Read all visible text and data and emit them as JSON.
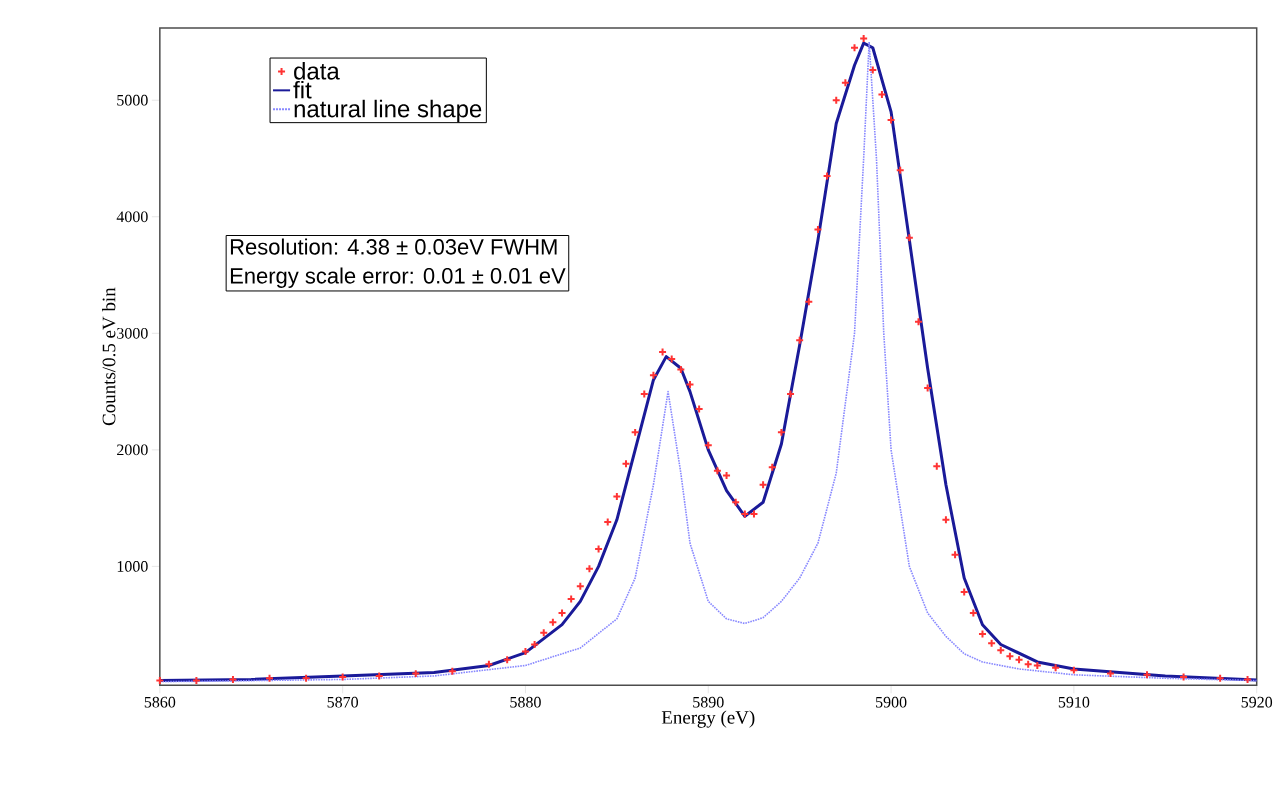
{
  "chart_data": {
    "type": "line",
    "xlabel": "Energy (eV)",
    "ylabel": "Counts/0.5 eV bin",
    "xlim": [
      5860,
      5920
    ],
    "ylim": [
      -20,
      5620
    ],
    "xticks": [
      5860,
      5870,
      5880,
      5890,
      5900,
      5910,
      5920
    ],
    "yticks": [
      1000,
      2000,
      3000,
      4000,
      5000
    ],
    "legend": "top left",
    "grid": false,
    "annotations": [
      "Resolution: 4.38 ± 0.03eV FWHM",
      "Energy scale error: 0.01 ± 0.01 eV"
    ],
    "series": [
      {
        "name": "data",
        "type": "scatter",
        "marker": "cross",
        "color": "#ff3333",
        "x": [
          5860,
          5862,
          5864,
          5866,
          5868,
          5870,
          5872,
          5874,
          5876,
          5878,
          5879,
          5880,
          5880.5,
          5881,
          5881.5,
          5882,
          5882.5,
          5883,
          5883.5,
          5884,
          5884.5,
          5885,
          5885.5,
          5886,
          5886.5,
          5887,
          5887.5,
          5888,
          5888.5,
          5889,
          5889.5,
          5890,
          5890.5,
          5891,
          5891.5,
          5892,
          5892.5,
          5893,
          5893.5,
          5894,
          5894.5,
          5895,
          5895.5,
          5896,
          5896.5,
          5897,
          5897.5,
          5898,
          5898.5,
          5899,
          5899.5,
          5900,
          5900.5,
          5901,
          5901.5,
          5902,
          5902.5,
          5903,
          5903.5,
          5904,
          5904.5,
          5905,
          5905.5,
          5906,
          5906.5,
          5907,
          5907.5,
          5908,
          5909,
          5910,
          5912,
          5914,
          5916,
          5918,
          5919.5
        ],
        "values": [
          20,
          20,
          30,
          40,
          40,
          50,
          60,
          80,
          100,
          160,
          200,
          270,
          330,
          430,
          520,
          600,
          720,
          830,
          980,
          1150,
          1380,
          1600,
          1880,
          2150,
          2480,
          2640,
          2840,
          2780,
          2690,
          2560,
          2350,
          2040,
          1820,
          1780,
          1550,
          1450,
          1450,
          1700,
          1850,
          2150,
          2480,
          2940,
          3270,
          3890,
          4350,
          5000,
          5150,
          5450,
          5530,
          5260,
          5050,
          4830,
          4400,
          3820,
          3100,
          2530,
          1860,
          1400,
          1100,
          780,
          600,
          420,
          340,
          280,
          230,
          200,
          160,
          150,
          130,
          110,
          80,
          70,
          50,
          40,
          30
        ]
      },
      {
        "name": "fit",
        "color": "#1a1a99",
        "line_style": "solid",
        "x": [
          5860,
          5865,
          5870,
          5875,
          5878,
          5880,
          5882,
          5883,
          5884,
          5885,
          5886,
          5887,
          5887.7,
          5888.5,
          5889,
          5890,
          5891,
          5892,
          5893,
          5894,
          5895,
          5896,
          5897,
          5898,
          5898.5,
          5899,
          5900,
          5901,
          5902,
          5903,
          5904,
          5905,
          5906,
          5908,
          5910,
          5915,
          5920
        ],
        "values": [
          20,
          30,
          60,
          90,
          150,
          260,
          500,
          700,
          1000,
          1400,
          2000,
          2600,
          2800,
          2700,
          2500,
          2000,
          1650,
          1430,
          1550,
          2050,
          2900,
          3800,
          4800,
          5300,
          5490,
          5450,
          4900,
          3800,
          2700,
          1700,
          900,
          500,
          330,
          180,
          120,
          60,
          25
        ]
      },
      {
        "name": "natural line shape",
        "color": "#8888ff",
        "line_style": "dotted",
        "x": [
          5860,
          5870,
          5875,
          5880,
          5883,
          5885,
          5886,
          5887,
          5887.8,
          5888.5,
          5889,
          5890,
          5891,
          5892,
          5893,
          5894,
          5895,
          5896,
          5897,
          5898,
          5898.5,
          5898.8,
          5899.2,
          5899.6,
          5900,
          5901,
          5902,
          5903,
          5904,
          5905,
          5907,
          5910,
          5915,
          5920
        ],
        "values": [
          10,
          30,
          60,
          150,
          300,
          550,
          900,
          1700,
          2500,
          1800,
          1200,
          700,
          550,
          510,
          560,
          700,
          900,
          1200,
          1800,
          3000,
          4500,
          5500,
          4500,
          3000,
          2000,
          1000,
          600,
          400,
          250,
          180,
          120,
          70,
          40,
          20
        ]
      }
    ]
  }
}
